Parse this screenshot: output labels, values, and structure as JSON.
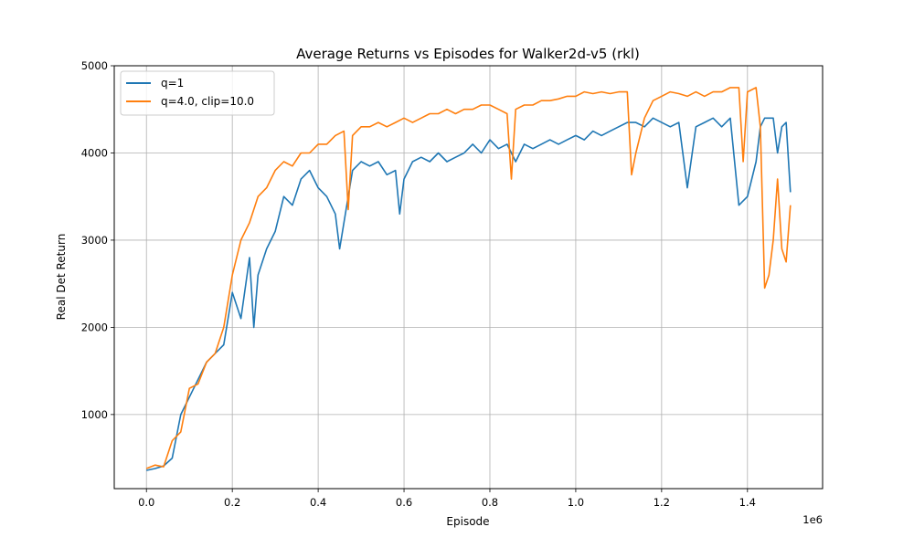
{
  "chart_data": {
    "type": "line",
    "title": "Average Returns vs Episodes for Walker2d-v5 (rkl)",
    "xlabel": "Episode",
    "ylabel": "Real Det Return",
    "x_offset_label": "1e6",
    "xlim": [
      -0.075,
      1.575
    ],
    "ylim": [
      150,
      5000
    ],
    "x_ticks": [
      0.0,
      0.2,
      0.4,
      0.6,
      0.8,
      1.0,
      1.2,
      1.4
    ],
    "x_tick_labels": [
      "0.0",
      "0.2",
      "0.4",
      "0.6",
      "0.8",
      "1.0",
      "1.2",
      "1.4"
    ],
    "y_ticks": [
      1000,
      2000,
      3000,
      4000,
      5000
    ],
    "y_tick_labels": [
      "1000",
      "2000",
      "3000",
      "4000",
      "5000"
    ],
    "grid": true,
    "legend_position": "top-left",
    "series": [
      {
        "name": "q=1",
        "color": "#1f77b4",
        "points": [
          [
            0.0,
            360
          ],
          [
            0.02,
            380
          ],
          [
            0.04,
            410
          ],
          [
            0.06,
            500
          ],
          [
            0.08,
            1000
          ],
          [
            0.1,
            1200
          ],
          [
            0.12,
            1400
          ],
          [
            0.14,
            1600
          ],
          [
            0.16,
            1700
          ],
          [
            0.18,
            1800
          ],
          [
            0.2,
            2400
          ],
          [
            0.22,
            2100
          ],
          [
            0.24,
            2800
          ],
          [
            0.25,
            2000
          ],
          [
            0.26,
            2600
          ],
          [
            0.28,
            2900
          ],
          [
            0.3,
            3100
          ],
          [
            0.32,
            3500
          ],
          [
            0.34,
            3400
          ],
          [
            0.36,
            3700
          ],
          [
            0.38,
            3800
          ],
          [
            0.4,
            3600
          ],
          [
            0.42,
            3500
          ],
          [
            0.44,
            3300
          ],
          [
            0.45,
            2900
          ],
          [
            0.46,
            3200
          ],
          [
            0.48,
            3800
          ],
          [
            0.5,
            3900
          ],
          [
            0.52,
            3850
          ],
          [
            0.54,
            3900
          ],
          [
            0.56,
            3750
          ],
          [
            0.58,
            3800
          ],
          [
            0.59,
            3300
          ],
          [
            0.6,
            3700
          ],
          [
            0.62,
            3900
          ],
          [
            0.64,
            3950
          ],
          [
            0.66,
            3900
          ],
          [
            0.68,
            4000
          ],
          [
            0.7,
            3900
          ],
          [
            0.72,
            3950
          ],
          [
            0.74,
            4000
          ],
          [
            0.76,
            4100
          ],
          [
            0.78,
            4000
          ],
          [
            0.8,
            4150
          ],
          [
            0.82,
            4050
          ],
          [
            0.84,
            4100
          ],
          [
            0.86,
            3900
          ],
          [
            0.88,
            4100
          ],
          [
            0.9,
            4050
          ],
          [
            0.92,
            4100
          ],
          [
            0.94,
            4150
          ],
          [
            0.96,
            4100
          ],
          [
            0.98,
            4150
          ],
          [
            1.0,
            4200
          ],
          [
            1.02,
            4150
          ],
          [
            1.04,
            4250
          ],
          [
            1.06,
            4200
          ],
          [
            1.08,
            4250
          ],
          [
            1.1,
            4300
          ],
          [
            1.12,
            4350
          ],
          [
            1.14,
            4350
          ],
          [
            1.16,
            4300
          ],
          [
            1.18,
            4400
          ],
          [
            1.2,
            4350
          ],
          [
            1.22,
            4300
          ],
          [
            1.24,
            4350
          ],
          [
            1.26,
            3600
          ],
          [
            1.28,
            4300
          ],
          [
            1.3,
            4350
          ],
          [
            1.32,
            4400
          ],
          [
            1.34,
            4300
          ],
          [
            1.36,
            4400
          ],
          [
            1.38,
            3400
          ],
          [
            1.4,
            3500
          ],
          [
            1.42,
            3900
          ],
          [
            1.43,
            4300
          ],
          [
            1.44,
            4400
          ],
          [
            1.46,
            4400
          ],
          [
            1.47,
            4000
          ],
          [
            1.48,
            4300
          ],
          [
            1.49,
            4350
          ],
          [
            1.5,
            3550
          ]
        ]
      },
      {
        "name": "q=4.0, clip=10.0",
        "color": "#ff7f0e",
        "points": [
          [
            0.0,
            380
          ],
          [
            0.02,
            420
          ],
          [
            0.04,
            400
          ],
          [
            0.06,
            700
          ],
          [
            0.08,
            800
          ],
          [
            0.1,
            1300
          ],
          [
            0.12,
            1350
          ],
          [
            0.14,
            1600
          ],
          [
            0.16,
            1700
          ],
          [
            0.18,
            2000
          ],
          [
            0.2,
            2600
          ],
          [
            0.22,
            3000
          ],
          [
            0.24,
            3200
          ],
          [
            0.26,
            3500
          ],
          [
            0.28,
            3600
          ],
          [
            0.3,
            3800
          ],
          [
            0.32,
            3900
          ],
          [
            0.34,
            3850
          ],
          [
            0.36,
            4000
          ],
          [
            0.38,
            4000
          ],
          [
            0.4,
            4100
          ],
          [
            0.42,
            4100
          ],
          [
            0.44,
            4200
          ],
          [
            0.46,
            4250
          ],
          [
            0.47,
            3350
          ],
          [
            0.48,
            4200
          ],
          [
            0.5,
            4300
          ],
          [
            0.52,
            4300
          ],
          [
            0.54,
            4350
          ],
          [
            0.56,
            4300
          ],
          [
            0.58,
            4350
          ],
          [
            0.6,
            4400
          ],
          [
            0.62,
            4350
          ],
          [
            0.64,
            4400
          ],
          [
            0.66,
            4450
          ],
          [
            0.68,
            4450
          ],
          [
            0.7,
            4500
          ],
          [
            0.72,
            4450
          ],
          [
            0.74,
            4500
          ],
          [
            0.76,
            4500
          ],
          [
            0.78,
            4550
          ],
          [
            0.8,
            4550
          ],
          [
            0.82,
            4500
          ],
          [
            0.84,
            4450
          ],
          [
            0.85,
            3700
          ],
          [
            0.86,
            4500
          ],
          [
            0.88,
            4550
          ],
          [
            0.9,
            4550
          ],
          [
            0.92,
            4600
          ],
          [
            0.94,
            4600
          ],
          [
            0.96,
            4620
          ],
          [
            0.98,
            4650
          ],
          [
            1.0,
            4650
          ],
          [
            1.02,
            4700
          ],
          [
            1.04,
            4680
          ],
          [
            1.06,
            4700
          ],
          [
            1.08,
            4680
          ],
          [
            1.1,
            4700
          ],
          [
            1.12,
            4700
          ],
          [
            1.13,
            3750
          ],
          [
            1.14,
            4000
          ],
          [
            1.16,
            4400
          ],
          [
            1.18,
            4600
          ],
          [
            1.2,
            4650
          ],
          [
            1.22,
            4700
          ],
          [
            1.24,
            4680
          ],
          [
            1.26,
            4650
          ],
          [
            1.28,
            4700
          ],
          [
            1.3,
            4650
          ],
          [
            1.32,
            4700
          ],
          [
            1.34,
            4700
          ],
          [
            1.36,
            4750
          ],
          [
            1.38,
            4750
          ],
          [
            1.39,
            3900
          ],
          [
            1.4,
            4700
          ],
          [
            1.42,
            4750
          ],
          [
            1.43,
            4300
          ],
          [
            1.44,
            2450
          ],
          [
            1.45,
            2600
          ],
          [
            1.46,
            3000
          ],
          [
            1.47,
            3700
          ],
          [
            1.48,
            2900
          ],
          [
            1.49,
            2750
          ],
          [
            1.5,
            3400
          ]
        ]
      }
    ]
  }
}
